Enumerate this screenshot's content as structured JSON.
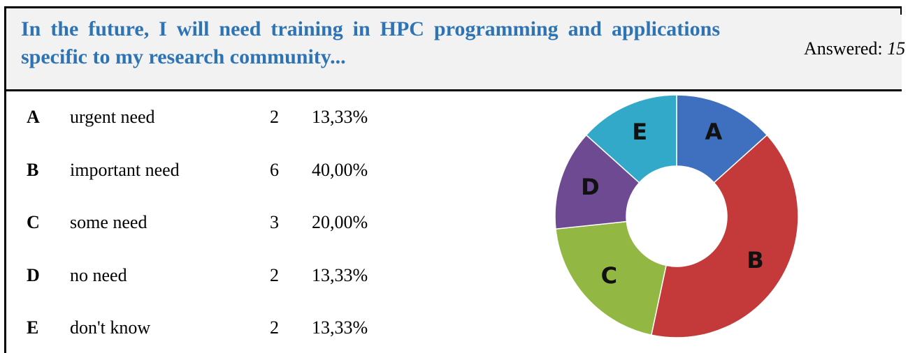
{
  "header": {
    "title": "In the future, I will need training in HPC programming and applications specific to my research community...",
    "answered_label": "Answered:",
    "answered_count": "15"
  },
  "rows": [
    {
      "letter": "A",
      "label": "urgent need",
      "count": 2,
      "percent": "13,33%"
    },
    {
      "letter": "B",
      "label": "important need",
      "count": 6,
      "percent": "40,00%"
    },
    {
      "letter": "C",
      "label": "some need",
      "count": 3,
      "percent": "20,00%"
    },
    {
      "letter": "D",
      "label": "no need",
      "count": 2,
      "percent": "13,33%"
    },
    {
      "letter": "E",
      "label": "don't know",
      "count": 2,
      "percent": "13,33%"
    }
  ],
  "chart": {
    "type": "donut",
    "colors": [
      "#3f70c0",
      "#c43a3a",
      "#92b843",
      "#6e4a93",
      "#33a9c9"
    ]
  }
}
